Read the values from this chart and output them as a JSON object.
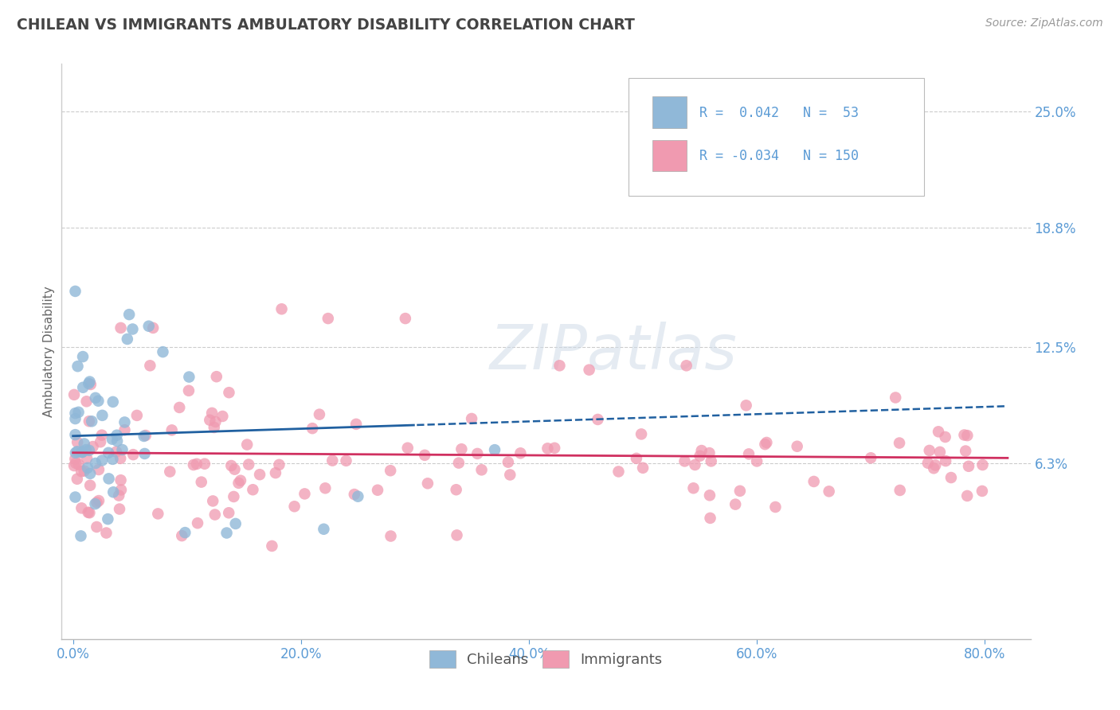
{
  "title": "CHILEAN VS IMMIGRANTS AMBULATORY DISABILITY CORRELATION CHART",
  "source": "Source: ZipAtlas.com",
  "ylabel": "Ambulatory Disability",
  "x_tick_labels": [
    "0.0%",
    "20.0%",
    "40.0%",
    "60.0%",
    "80.0%"
  ],
  "x_tick_vals": [
    0.0,
    0.2,
    0.4,
    0.6,
    0.8
  ],
  "y_tick_labels": [
    "6.3%",
    "12.5%",
    "18.8%",
    "25.0%"
  ],
  "y_tick_vals": [
    0.063,
    0.125,
    0.188,
    0.25
  ],
  "xlim": [
    -0.01,
    0.84
  ],
  "ylim": [
    -0.03,
    0.275
  ],
  "chilean_R": 0.042,
  "chilean_N": 53,
  "immigrant_R": -0.034,
  "immigrant_N": 150,
  "chilean_color": "#90b8d8",
  "immigrant_color": "#f09ab0",
  "chilean_line_color": "#2060a0",
  "immigrant_line_color": "#d03060",
  "legend_label_chileans": "Chileans",
  "legend_label_immigrants": "Immigrants",
  "background_color": "#ffffff",
  "grid_color": "#cccccc",
  "title_color": "#444444",
  "axis_label_color": "#5b9bd5",
  "watermark_color": "#d0dce8"
}
